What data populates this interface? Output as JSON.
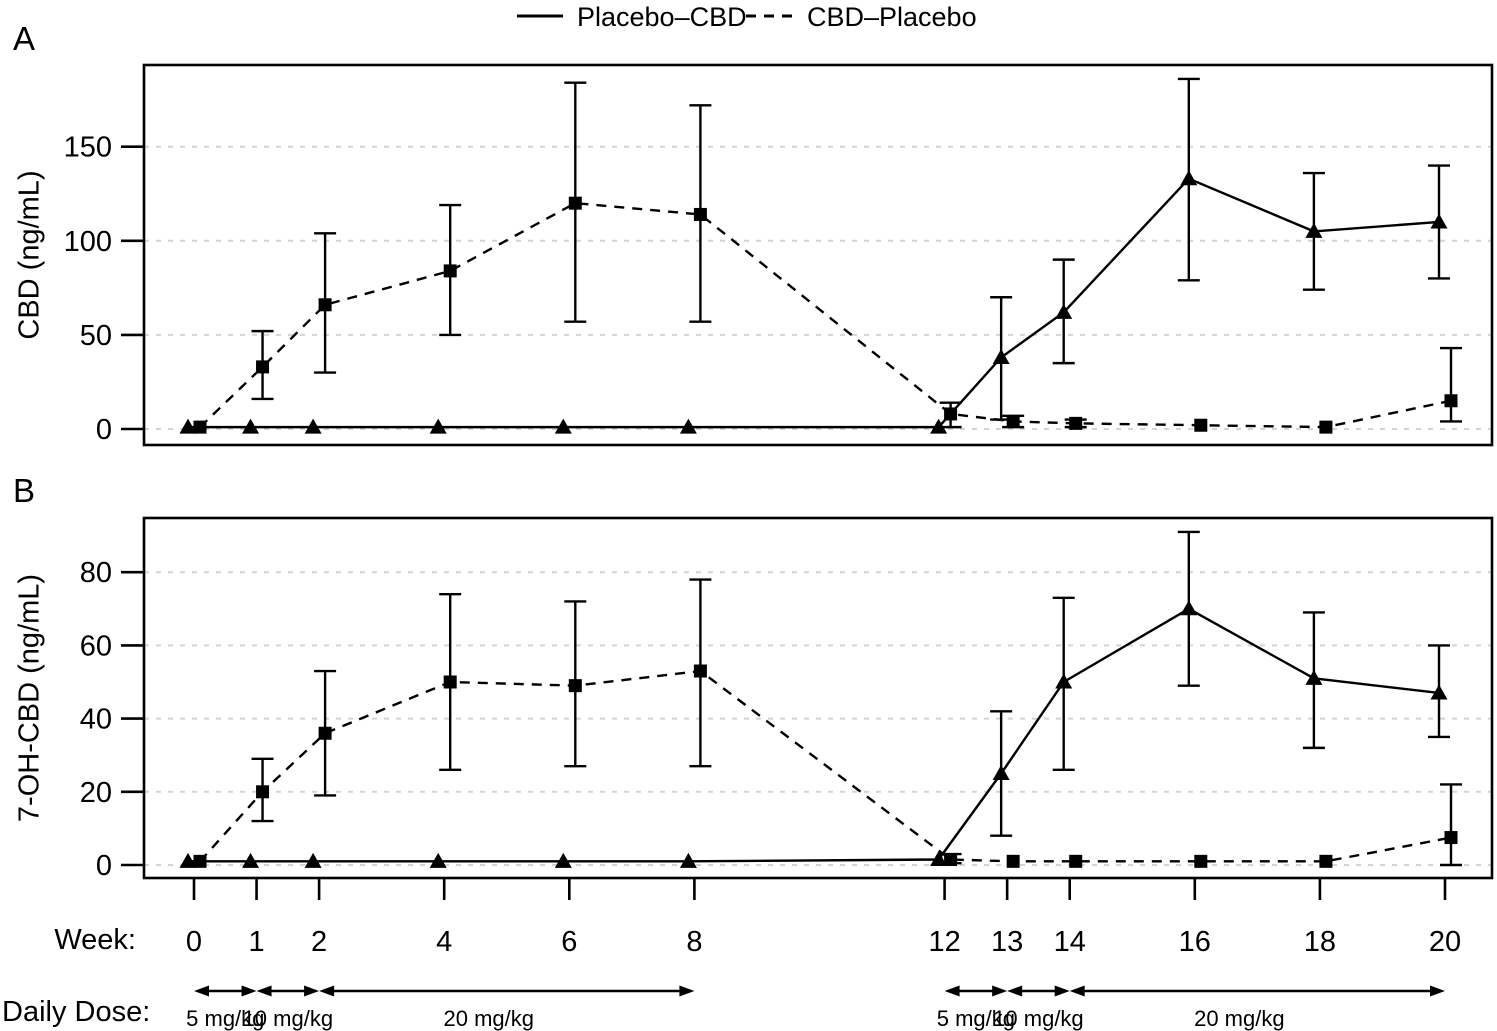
{
  "colors": {
    "foreground": "#000000",
    "background": "#ffffff",
    "gridline": "#d4d4d4"
  },
  "legend": {
    "items": [
      {
        "label": "Placebo–CBD",
        "line": "solid",
        "marker": "triangle"
      },
      {
        "label": "CBD–Placebo",
        "line": "dashed",
        "marker": "square"
      }
    ],
    "position": "top"
  },
  "panels": [
    {
      "label": "A"
    },
    {
      "label": "B"
    }
  ],
  "xaxis": {
    "label": "Week:",
    "weeks": [
      0,
      1,
      2,
      4,
      6,
      8,
      12,
      13,
      14,
      16,
      18,
      20
    ]
  },
  "dose": {
    "label": "Daily Dose:",
    "segments": [
      {
        "text": "5 mg/kg",
        "from_week": 0,
        "to_week": 1
      },
      {
        "text": "10 mg/kg",
        "from_week": 1,
        "to_week": 2
      },
      {
        "text": "20 mg/kg",
        "from_week": 2,
        "to_week": 8
      },
      {
        "text": "5 mg/kg",
        "from_week": 12,
        "to_week": 13
      },
      {
        "text": "10 mg/kg",
        "from_week": 13,
        "to_week": 14
      },
      {
        "text": "20 mg/kg",
        "from_week": 14,
        "to_week": 20
      }
    ]
  },
  "chart_data": [
    {
      "type": "line",
      "panel": "A",
      "xlabel": "Week",
      "ylabel": "CBD (ng/mL)",
      "x": [
        0,
        1,
        2,
        4,
        6,
        8,
        12,
        13,
        14,
        16,
        18,
        20
      ],
      "ylim": [
        0,
        193
      ],
      "yticks": [
        0,
        50,
        100,
        150
      ],
      "grid": "dashed-horizontal",
      "error_bars": true,
      "series": [
        {
          "name": "Placebo–CBD",
          "style": "solid",
          "marker": "triangle",
          "values": [
            1,
            1,
            1,
            1,
            1,
            1,
            1,
            38,
            62,
            133,
            105,
            110
          ],
          "err_lo": [
            null,
            null,
            null,
            null,
            null,
            null,
            null,
            5,
            35,
            79,
            74,
            80
          ],
          "err_hi": [
            null,
            null,
            null,
            null,
            null,
            null,
            null,
            70,
            90,
            186,
            136,
            140
          ]
        },
        {
          "name": "CBD–Placebo",
          "style": "dashed",
          "marker": "square",
          "values": [
            1,
            33,
            66,
            84,
            120,
            114,
            8,
            4,
            3,
            2,
            1,
            15
          ],
          "err_lo": [
            null,
            16,
            30,
            50,
            57,
            57,
            1,
            1,
            1,
            null,
            null,
            4
          ],
          "err_hi": [
            null,
            52,
            104,
            119,
            184,
            172,
            14,
            7,
            5,
            null,
            null,
            43
          ]
        }
      ]
    },
    {
      "type": "line",
      "panel": "B",
      "xlabel": "Week",
      "ylabel": "7-OH-CBD (ng/mL)",
      "x": [
        0,
        1,
        2,
        4,
        6,
        8,
        12,
        13,
        14,
        16,
        18,
        20
      ],
      "ylim": [
        0,
        95
      ],
      "yticks": [
        0,
        20,
        40,
        60,
        80
      ],
      "grid": "dashed-horizontal",
      "error_bars": true,
      "series": [
        {
          "name": "Placebo–CBD",
          "style": "solid",
          "marker": "triangle",
          "values": [
            1,
            1,
            1,
            1,
            1,
            1,
            1.5,
            25,
            50,
            70,
            51,
            47
          ],
          "err_lo": [
            null,
            null,
            null,
            null,
            null,
            null,
            null,
            8,
            26,
            49,
            32,
            35
          ],
          "err_hi": [
            null,
            null,
            null,
            null,
            null,
            null,
            null,
            42,
            73,
            91,
            69,
            60
          ]
        },
        {
          "name": "CBD–Placebo",
          "style": "dashed",
          "marker": "square",
          "values": [
            1,
            20,
            36,
            50,
            49,
            53,
            1.5,
            1,
            1,
            1,
            1,
            7.5
          ],
          "err_lo": [
            null,
            12,
            19,
            26,
            27,
            27,
            0.5,
            null,
            null,
            null,
            null,
            0
          ],
          "err_hi": [
            null,
            29,
            53,
            74,
            72,
            78,
            3,
            null,
            null,
            null,
            null,
            22
          ]
        }
      ]
    }
  ]
}
